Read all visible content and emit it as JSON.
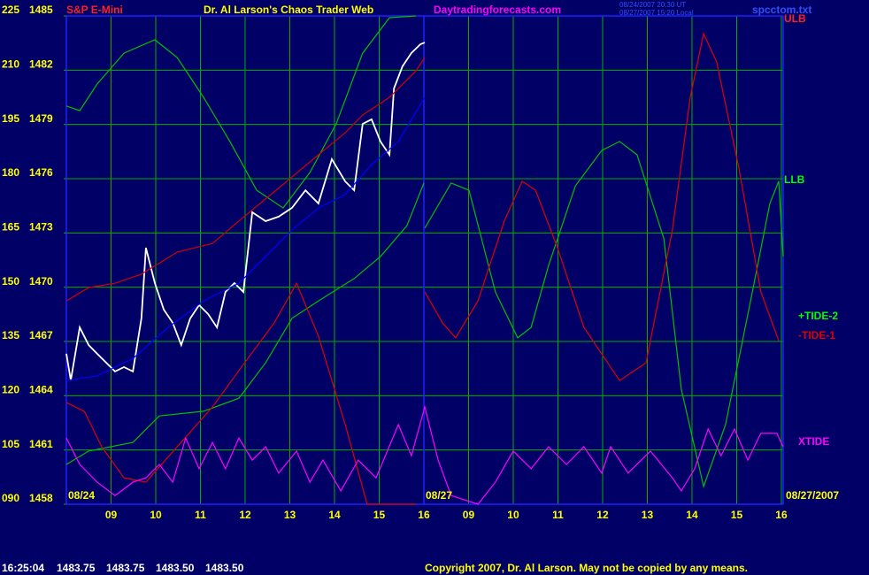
{
  "chart_data": {
    "type": "line",
    "instrument": "S&P E-Mini",
    "title": "Dr. Al Larson's Chaos Trader Web",
    "website": "Daytradingforecasts.com",
    "timestamps": [
      "08/24/2007 20:30 UT",
      "08/27/2007 15:20 Local"
    ],
    "filename": "spcctom.txt",
    "annotations": [
      "ULB",
      "LLB",
      "08/24",
      "08/27",
      "08/27/2007"
    ],
    "status": {
      "time": "16:25:04",
      "quotes": [
        "1483.75",
        "1483.75",
        "1483.50",
        "1483.50"
      ]
    },
    "copyright": "Copyright 2007, Dr. Al Larson. May not be copied by any means.",
    "grid": true,
    "xlim": [
      0,
      16.04
    ],
    "xticks": [
      {
        "value": 1,
        "label": "09"
      },
      {
        "value": 2,
        "label": "10"
      },
      {
        "value": 3,
        "label": "11"
      },
      {
        "value": 4,
        "label": "12"
      },
      {
        "value": 5,
        "label": "13"
      },
      {
        "value": 6,
        "label": "14"
      },
      {
        "value": 7,
        "label": "15"
      },
      {
        "value": 8,
        "label": "16"
      },
      {
        "value": 9,
        "label": "09"
      },
      {
        "value": 10,
        "label": "10"
      },
      {
        "value": 11,
        "label": "11"
      },
      {
        "value": 12,
        "label": "12"
      },
      {
        "value": 13,
        "label": "13"
      },
      {
        "value": 14,
        "label": "14"
      },
      {
        "value": 15,
        "label": "15"
      },
      {
        "value": 16,
        "label": "16"
      }
    ],
    "ylim": [
      90,
      225
    ],
    "yticks": [
      {
        "value": 90,
        "label": "090"
      },
      105,
      120,
      135,
      150,
      165,
      180,
      195,
      210,
      225
    ],
    "y2lim": [
      1458,
      1485
    ],
    "y2ticks": [
      1458,
      1461,
      1464,
      1467,
      1470,
      1473,
      1476,
      1479,
      1482,
      1485
    ],
    "series": [
      {
        "color": "#ffffff",
        "axis": "y2",
        "x": [
          0,
          0.1,
          0.3,
          0.5,
          0.69,
          0.89,
          1.09,
          1.29,
          1.49,
          1.68,
          1.78,
          1.98,
          2.18,
          2.38,
          2.57,
          2.77,
          2.97,
          3.17,
          3.37,
          3.56,
          3.76,
          3.96,
          4.16,
          4.46,
          4.75,
          5.05,
          5.35,
          5.64,
          5.94,
          6.24,
          6.44,
          6.63,
          6.83,
          7.03,
          7.23,
          7.33,
          7.52,
          7.72,
          7.92,
          8.02
        ],
        "values": [
          1466.32,
          1464.85,
          1467.78,
          1466.8,
          1466.32,
          1465.83,
          1465.34,
          1465.58,
          1465.34,
          1468.27,
          1472.18,
          1470.23,
          1468.76,
          1468.03,
          1466.8,
          1468.27,
          1469.01,
          1468.52,
          1467.78,
          1469.74,
          1470.23,
          1469.74,
          1474.14,
          1473.65,
          1473.9,
          1474.39,
          1475.36,
          1474.63,
          1477.08,
          1475.85,
          1475.36,
          1479.03,
          1479.28,
          1478.05,
          1477.32,
          1480.99,
          1482.21,
          1482.95,
          1483.43,
          1483.53
        ]
      },
      {
        "color": "#00c000",
        "x": [
          0,
          0.3,
          0.69,
          1.29,
          1.98,
          2.48,
          3.07,
          3.66,
          4.26,
          4.85,
          5.45,
          6.04,
          6.63,
          7.23,
          7.82
        ],
        "values": [
          200.1,
          198.8,
          206.2,
          214.7,
          218.4,
          213.5,
          202.5,
          190.3,
          176.8,
          171.9,
          181.7,
          195.2,
          214.7,
          224.5,
          225.0
        ]
      },
      {
        "color": "#d00000",
        "x": [
          0,
          0.5,
          1.09,
          1.68,
          2.48,
          3.27,
          3.86,
          4.46,
          5.05,
          5.64,
          6.24,
          6.63,
          7.23,
          7.82,
          8.02
        ],
        "values": [
          146.2,
          149.9,
          151.1,
          153.6,
          159.7,
          162.1,
          168.3,
          174.4,
          180.5,
          186.6,
          192.7,
          197.6,
          202.5,
          209.8,
          213.5
        ]
      },
      {
        "color": "#0000ff",
        "x": [
          0,
          0.69,
          1.49,
          2.28,
          3.07,
          3.86,
          4.46,
          5.05,
          5.64,
          6.24,
          6.83,
          7.43,
          8.02
        ],
        "values": [
          124.2,
          125.5,
          130.3,
          138.9,
          146.2,
          151.1,
          158.5,
          165.8,
          171.9,
          175.6,
          183.9,
          190.3,
          202.5
        ]
      },
      {
        "name": "+TIDE-2",
        "color": "#00c000",
        "x": [
          0,
          0.5,
          1.49,
          2.08,
          3.07,
          3.86,
          4.46,
          5.05,
          5.64,
          6.44,
          7.03,
          7.62,
          8.0,
          8.01,
          8.02,
          8.61,
          9.01,
          9.6,
          10.1,
          10.4,
          10.79,
          11.39,
          11.98,
          12.38,
          12.77,
          13.37,
          13.76,
          14.26,
          14.75,
          15.35,
          15.74,
          15.94,
          16.04
        ],
        "values": [
          101.0,
          104.7,
          107.1,
          114.4,
          115.7,
          119.3,
          129.1,
          141.4,
          146.2,
          152.4,
          158.5,
          167.0,
          178.8,
          null,
          166.3,
          178.8,
          176.8,
          148.7,
          136.0,
          138.9,
          156.0,
          178.0,
          187.8,
          190.3,
          186.6,
          163.4,
          121.8,
          94.9,
          112.0,
          148.7,
          173.1,
          179.3,
          158.5
        ]
      },
      {
        "name": "-TIDE-1",
        "color": "#e00000",
        "x": [
          0,
          0.4,
          0.79,
          1.29,
          1.78,
          2.48,
          3.27,
          4.06,
          4.65,
          5.15,
          5.64,
          6.24,
          6.73,
          7.82,
          7.92,
          8.02,
          8.42,
          8.71,
          9.21,
          9.8,
          10.2,
          10.5,
          10.99,
          11.58,
          12.38,
          12.97,
          13.56,
          13.96,
          14.26,
          14.55,
          15.05,
          15.54,
          15.94
        ],
        "values": [
          118.1,
          115.7,
          105.9,
          97.3,
          96.1,
          105.9,
          116.9,
          130.3,
          140.1,
          151.1,
          136.5,
          112.0,
          90.0,
          90.0,
          null,
          148.7,
          140.1,
          136.0,
          146.2,
          168.3,
          179.3,
          176.8,
          160.9,
          138.9,
          124.2,
          129.1,
          165.8,
          202.5,
          220.1,
          212.3,
          182.9,
          148.7,
          135.2
        ]
      },
      {
        "name": "XTIDE",
        "color": "#ff00ff",
        "x": [
          0,
          0.3,
          0.69,
          1.09,
          1.49,
          1.78,
          2.08,
          2.38,
          2.67,
          2.97,
          3.27,
          3.56,
          3.86,
          4.16,
          4.46,
          4.75,
          5.15,
          5.45,
          5.74,
          6.14,
          6.53,
          6.93,
          7.43,
          7.72,
          8.02,
          8.32,
          8.61,
          9.21,
          9.6,
          10.0,
          10.4,
          10.79,
          11.19,
          11.58,
          11.98,
          12.18,
          12.57,
          13.07,
          13.56,
          13.76,
          14.06,
          14.36,
          14.65,
          14.95,
          15.25,
          15.54,
          15.9,
          16.04
        ],
        "values": [
          108.3,
          101.0,
          96.1,
          92.4,
          96.1,
          97.3,
          101.0,
          96.1,
          108.3,
          99.8,
          107.1,
          99.8,
          108.3,
          102.2,
          105.9,
          98.6,
          104.7,
          96.1,
          102.2,
          93.7,
          102.2,
          97.3,
          112.0,
          103.4,
          116.9,
          102.2,
          92.4,
          90.0,
          96.1,
          104.7,
          99.8,
          105.9,
          101.0,
          105.9,
          98.6,
          105.9,
          98.6,
          104.7,
          97.3,
          93.7,
          99.8,
          110.8,
          103.4,
          110.8,
          102.2,
          109.6,
          109.6,
          105.9
        ]
      }
    ]
  }
}
